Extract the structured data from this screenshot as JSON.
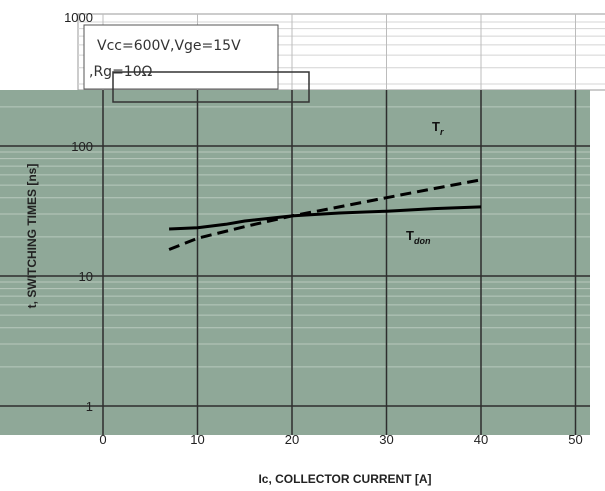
{
  "chart_data": {
    "type": "line",
    "title": "",
    "xlabel": "Ic, COLLECTOR CURRENT [A]",
    "ylabel": "t, SWITCHING TIMES [ns]",
    "x_scale": "linear",
    "y_scale": "log",
    "xlim": [
      0,
      50
    ],
    "ylim": [
      1,
      1000
    ],
    "x_ticks": [
      "0",
      "10",
      "20",
      "30",
      "40",
      "50"
    ],
    "y_ticks": [
      "1",
      "10",
      "100",
      "1000"
    ],
    "grid": true,
    "annotation": {
      "line1": "Vcc=600V,Vge=15V",
      "line2": ",Rg=10Ω"
    },
    "series": [
      {
        "name": "Tr",
        "label_main": "T",
        "label_sub": "r",
        "style": "dashed",
        "color": "#000000",
        "x": [
          7,
          10,
          15,
          20,
          25,
          30,
          35,
          40
        ],
        "y": [
          16,
          19.5,
          24,
          29,
          34,
          40,
          47,
          55
        ]
      },
      {
        "name": "Tdon",
        "label_main": "T",
        "label_sub": "don",
        "style": "solid",
        "color": "#000000",
        "x": [
          7,
          10,
          13,
          15,
          20,
          25,
          30,
          35,
          40
        ],
        "y": [
          23,
          23.5,
          25,
          26.5,
          29,
          30.5,
          31.5,
          33,
          34
        ]
      }
    ],
    "colors": {
      "plot_background": "#8fa898",
      "grid_major": "#2e2e2e",
      "grid_minor": "#b8c9bd",
      "page_background": "#ffffff"
    }
  }
}
